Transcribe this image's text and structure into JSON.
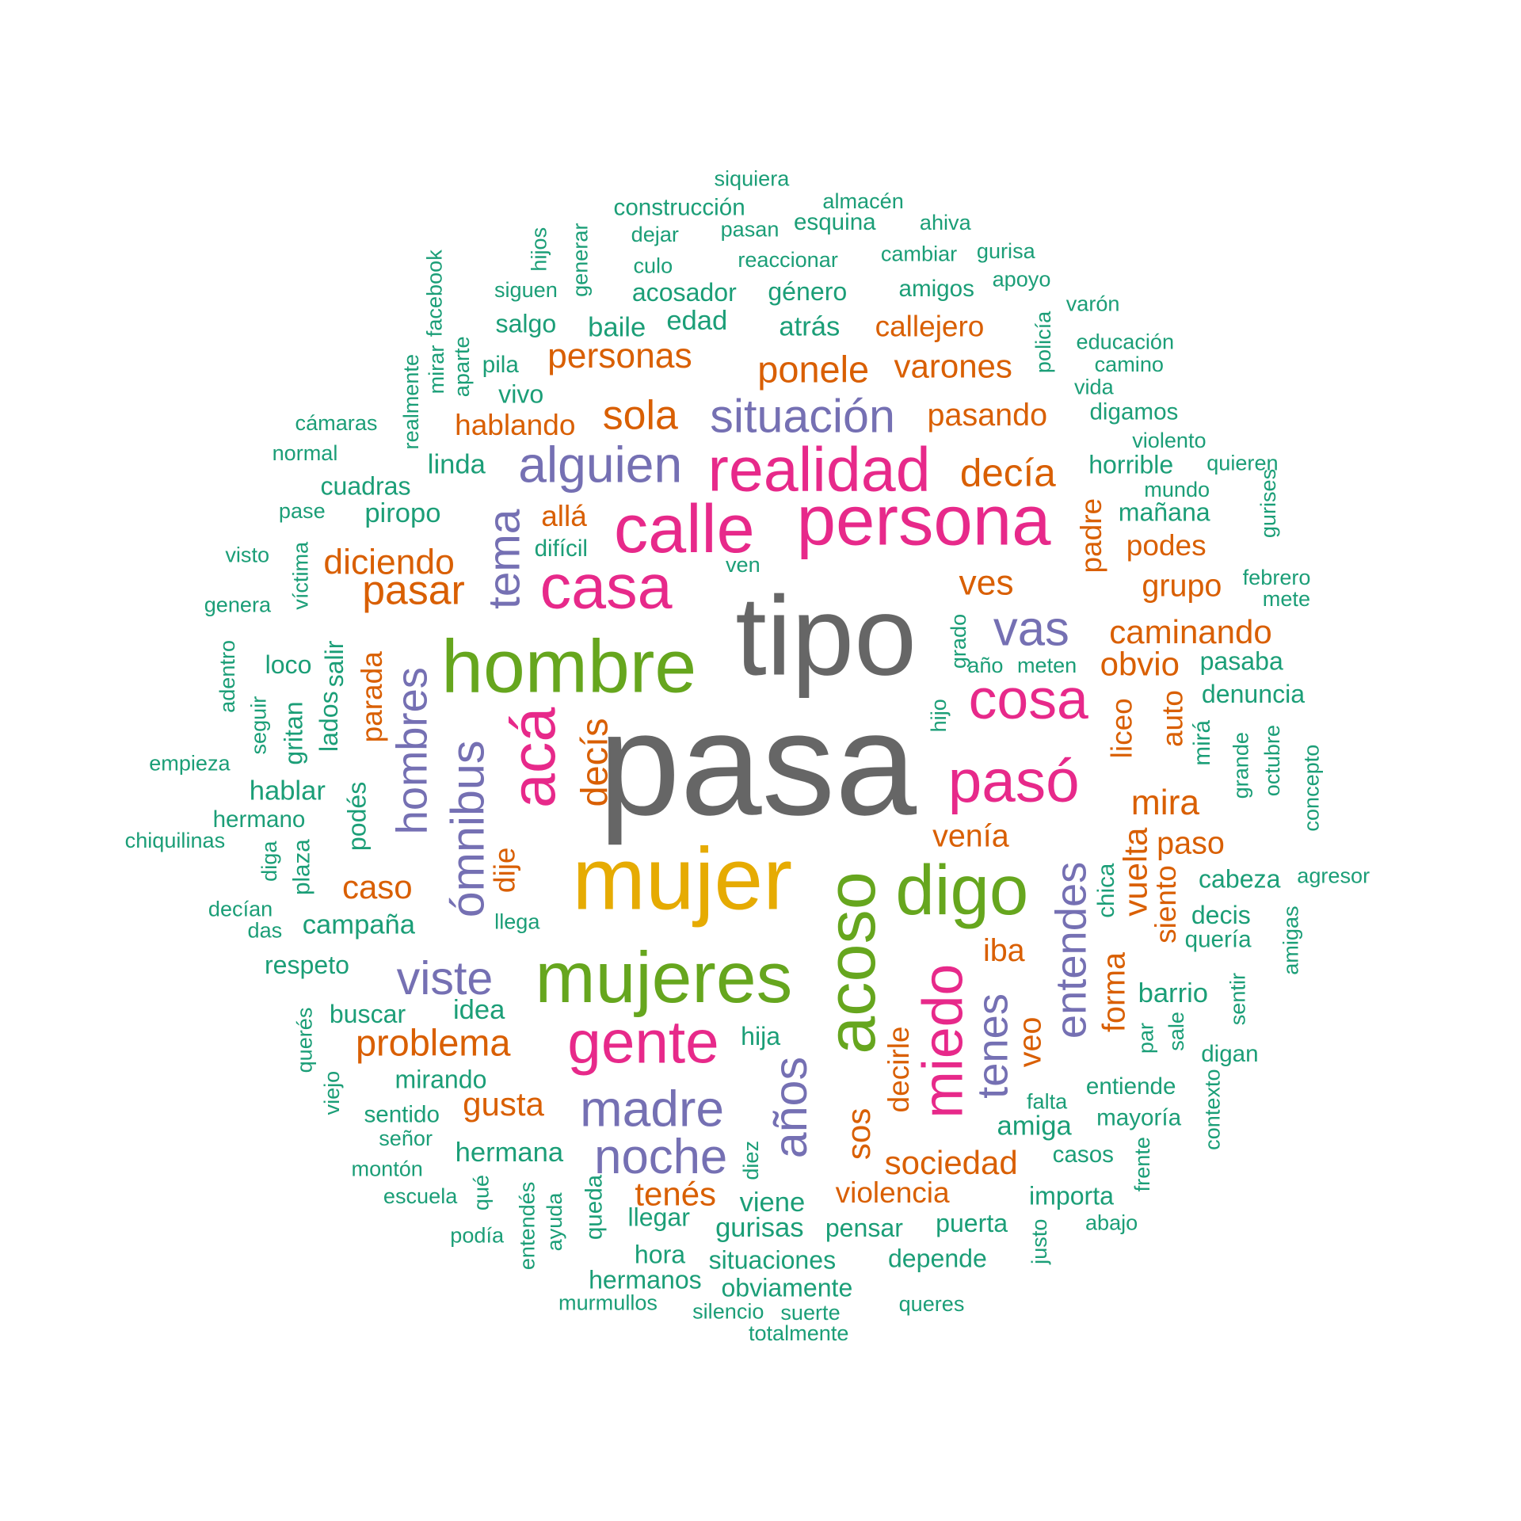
{
  "palette": {
    "gray": "#666666",
    "gold": "#E6AB02",
    "green": "#66A61E",
    "pink": "#E7298A",
    "purple": "#7570B3",
    "orange": "#D95F02",
    "teal": "#1B9E77"
  },
  "words": [
    {
      "text": "pasa",
      "color": "gray"
    },
    {
      "text": "tipo",
      "color": "gray"
    },
    {
      "text": "mujer",
      "color": "gold"
    },
    {
      "text": "hombre",
      "color": "green"
    },
    {
      "text": "mujeres",
      "color": "green"
    },
    {
      "text": "acoso",
      "color": "green"
    },
    {
      "text": "digo",
      "color": "green"
    },
    {
      "text": "persona",
      "color": "pink"
    },
    {
      "text": "calle",
      "color": "pink"
    },
    {
      "text": "realidad",
      "color": "pink"
    },
    {
      "text": "casa",
      "color": "pink"
    },
    {
      "text": "acá",
      "color": "pink"
    },
    {
      "text": "cosa",
      "color": "pink"
    },
    {
      "text": "pasó",
      "color": "pink"
    },
    {
      "text": "gente",
      "color": "pink"
    },
    {
      "text": "miedo",
      "color": "pink"
    },
    {
      "text": "alguien",
      "color": "purple"
    },
    {
      "text": "situación",
      "color": "purple"
    },
    {
      "text": "tema",
      "color": "purple"
    },
    {
      "text": "vas",
      "color": "purple"
    },
    {
      "text": "hombres",
      "color": "purple"
    },
    {
      "text": "ómnibus",
      "color": "purple"
    },
    {
      "text": "viste",
      "color": "purple"
    },
    {
      "text": "madre",
      "color": "purple"
    },
    {
      "text": "noche",
      "color": "purple"
    },
    {
      "text": "años",
      "color": "purple"
    },
    {
      "text": "entendes",
      "color": "purple"
    },
    {
      "text": "tenes",
      "color": "purple"
    },
    {
      "text": "personas",
      "color": "orange"
    },
    {
      "text": "ponele",
      "color": "orange"
    },
    {
      "text": "varones",
      "color": "orange"
    },
    {
      "text": "callejero",
      "color": "orange"
    },
    {
      "text": "sola",
      "color": "orange"
    },
    {
      "text": "hablando",
      "color": "orange"
    },
    {
      "text": "pasando",
      "color": "orange"
    },
    {
      "text": "decía",
      "color": "orange"
    },
    {
      "text": "allá",
      "color": "orange"
    },
    {
      "text": "diciendo",
      "color": "orange"
    },
    {
      "text": "pasar",
      "color": "orange"
    },
    {
      "text": "ves",
      "color": "orange"
    },
    {
      "text": "caminando",
      "color": "orange"
    },
    {
      "text": "obvio",
      "color": "orange"
    },
    {
      "text": "podes",
      "color": "orange"
    },
    {
      "text": "grupo",
      "color": "orange"
    },
    {
      "text": "padre",
      "color": "orange"
    },
    {
      "text": "parada",
      "color": "orange"
    },
    {
      "text": "decís",
      "color": "orange"
    },
    {
      "text": "auto",
      "color": "orange"
    },
    {
      "text": "liceo",
      "color": "orange"
    },
    {
      "text": "mira",
      "color": "orange"
    },
    {
      "text": "venía",
      "color": "orange"
    },
    {
      "text": "paso",
      "color": "orange"
    },
    {
      "text": "caso",
      "color": "orange"
    },
    {
      "text": "dije",
      "color": "orange"
    },
    {
      "text": "vuelta",
      "color": "orange"
    },
    {
      "text": "siento",
      "color": "orange"
    },
    {
      "text": "forma",
      "color": "orange"
    },
    {
      "text": "iba",
      "color": "orange"
    },
    {
      "text": "problema",
      "color": "orange"
    },
    {
      "text": "gusta",
      "color": "orange"
    },
    {
      "text": "veo",
      "color": "orange"
    },
    {
      "text": "decirle",
      "color": "orange"
    },
    {
      "text": "sos",
      "color": "orange"
    },
    {
      "text": "sociedad",
      "color": "orange"
    },
    {
      "text": "violencia",
      "color": "orange"
    },
    {
      "text": "tenés",
      "color": "orange"
    },
    {
      "text": "siquiera",
      "color": "teal"
    },
    {
      "text": "almacén",
      "color": "teal"
    },
    {
      "text": "construcción",
      "color": "teal"
    },
    {
      "text": "ahiva",
      "color": "teal"
    },
    {
      "text": "esquina",
      "color": "teal"
    },
    {
      "text": "dejar",
      "color": "teal"
    },
    {
      "text": "pasan",
      "color": "teal"
    },
    {
      "text": "cambiar",
      "color": "teal"
    },
    {
      "text": "gurisa",
      "color": "teal"
    },
    {
      "text": "hijos",
      "color": "teal"
    },
    {
      "text": "generar",
      "color": "teal"
    },
    {
      "text": "culo",
      "color": "teal"
    },
    {
      "text": "reaccionar",
      "color": "teal"
    },
    {
      "text": "facebook",
      "color": "teal"
    },
    {
      "text": "siguen",
      "color": "teal"
    },
    {
      "text": "acosador",
      "color": "teal"
    },
    {
      "text": "género",
      "color": "teal"
    },
    {
      "text": "amigos",
      "color": "teal"
    },
    {
      "text": "apoyo",
      "color": "teal"
    },
    {
      "text": "varón",
      "color": "teal"
    },
    {
      "text": "mirar",
      "color": "teal"
    },
    {
      "text": "salgo",
      "color": "teal"
    },
    {
      "text": "baile",
      "color": "teal"
    },
    {
      "text": "edad",
      "color": "teal"
    },
    {
      "text": "atrás",
      "color": "teal"
    },
    {
      "text": "policía",
      "color": "teal"
    },
    {
      "text": "educación",
      "color": "teal"
    },
    {
      "text": "aparte",
      "color": "teal"
    },
    {
      "text": "realmente",
      "color": "teal"
    },
    {
      "text": "pila",
      "color": "teal"
    },
    {
      "text": "camino",
      "color": "teal"
    },
    {
      "text": "vida",
      "color": "teal"
    },
    {
      "text": "vivo",
      "color": "teal"
    },
    {
      "text": "cámaras",
      "color": "teal"
    },
    {
      "text": "digamos",
      "color": "teal"
    },
    {
      "text": "violento",
      "color": "teal"
    },
    {
      "text": "normal",
      "color": "teal"
    },
    {
      "text": "linda",
      "color": "teal"
    },
    {
      "text": "horrible",
      "color": "teal"
    },
    {
      "text": "quieren",
      "color": "teal"
    },
    {
      "text": "cuadras",
      "color": "teal"
    },
    {
      "text": "mundo",
      "color": "teal"
    },
    {
      "text": "pase",
      "color": "teal"
    },
    {
      "text": "piropo",
      "color": "teal"
    },
    {
      "text": "mañana",
      "color": "teal"
    },
    {
      "text": "gurises",
      "color": "teal"
    },
    {
      "text": "visto",
      "color": "teal"
    },
    {
      "text": "difícil",
      "color": "teal"
    },
    {
      "text": "víctima",
      "color": "teal"
    },
    {
      "text": "ven",
      "color": "teal"
    },
    {
      "text": "febrero",
      "color": "teal"
    },
    {
      "text": "genera",
      "color": "teal"
    },
    {
      "text": "mete",
      "color": "teal"
    },
    {
      "text": "grado",
      "color": "teal"
    },
    {
      "text": "adentro",
      "color": "teal"
    },
    {
      "text": "loco",
      "color": "teal"
    },
    {
      "text": "salir",
      "color": "teal"
    },
    {
      "text": "año",
      "color": "teal"
    },
    {
      "text": "meten",
      "color": "teal"
    },
    {
      "text": "pasaba",
      "color": "teal"
    },
    {
      "text": "seguir",
      "color": "teal"
    },
    {
      "text": "gritan",
      "color": "teal"
    },
    {
      "text": "lados",
      "color": "teal"
    },
    {
      "text": "hijo",
      "color": "teal"
    },
    {
      "text": "denuncia",
      "color": "teal"
    },
    {
      "text": "empieza",
      "color": "teal"
    },
    {
      "text": "mirá",
      "color": "teal"
    },
    {
      "text": "grande",
      "color": "teal"
    },
    {
      "text": "octubre",
      "color": "teal"
    },
    {
      "text": "concepto",
      "color": "teal"
    },
    {
      "text": "hablar",
      "color": "teal"
    },
    {
      "text": "hermano",
      "color": "teal"
    },
    {
      "text": "podés",
      "color": "teal"
    },
    {
      "text": "chiquilinas",
      "color": "teal"
    },
    {
      "text": "diga",
      "color": "teal"
    },
    {
      "text": "plaza",
      "color": "teal"
    },
    {
      "text": "chica",
      "color": "teal"
    },
    {
      "text": "cabeza",
      "color": "teal"
    },
    {
      "text": "agresor",
      "color": "teal"
    },
    {
      "text": "decían",
      "color": "teal"
    },
    {
      "text": "das",
      "color": "teal"
    },
    {
      "text": "campaña",
      "color": "teal"
    },
    {
      "text": "llega",
      "color": "teal"
    },
    {
      "text": "decis",
      "color": "teal"
    },
    {
      "text": "quería",
      "color": "teal"
    },
    {
      "text": "amigas",
      "color": "teal"
    },
    {
      "text": "respeto",
      "color": "teal"
    },
    {
      "text": "barrio",
      "color": "teal"
    },
    {
      "text": "buscar",
      "color": "teal"
    },
    {
      "text": "idea",
      "color": "teal"
    },
    {
      "text": "sentir",
      "color": "teal"
    },
    {
      "text": "querés",
      "color": "teal"
    },
    {
      "text": "hija",
      "color": "teal"
    },
    {
      "text": "par",
      "color": "teal"
    },
    {
      "text": "sale",
      "color": "teal"
    },
    {
      "text": "digan",
      "color": "teal"
    },
    {
      "text": "viejo",
      "color": "teal"
    },
    {
      "text": "mirando",
      "color": "teal"
    },
    {
      "text": "entiende",
      "color": "teal"
    },
    {
      "text": "contexto",
      "color": "teal"
    },
    {
      "text": "sentido",
      "color": "teal"
    },
    {
      "text": "falta",
      "color": "teal"
    },
    {
      "text": "mayoría",
      "color": "teal"
    },
    {
      "text": "amiga",
      "color": "teal"
    },
    {
      "text": "señor",
      "color": "teal"
    },
    {
      "text": "hermana",
      "color": "teal"
    },
    {
      "text": "casos",
      "color": "teal"
    },
    {
      "text": "montón",
      "color": "teal"
    },
    {
      "text": "diez",
      "color": "teal"
    },
    {
      "text": "frente",
      "color": "teal"
    },
    {
      "text": "escuela",
      "color": "teal"
    },
    {
      "text": "qué",
      "color": "teal"
    },
    {
      "text": "entendés",
      "color": "teal"
    },
    {
      "text": "ayuda",
      "color": "teal"
    },
    {
      "text": "queda",
      "color": "teal"
    },
    {
      "text": "viene",
      "color": "teal"
    },
    {
      "text": "importa",
      "color": "teal"
    },
    {
      "text": "podía",
      "color": "teal"
    },
    {
      "text": "llegar",
      "color": "teal"
    },
    {
      "text": "gurisas",
      "color": "teal"
    },
    {
      "text": "pensar",
      "color": "teal"
    },
    {
      "text": "puerta",
      "color": "teal"
    },
    {
      "text": "justo",
      "color": "teal"
    },
    {
      "text": "abajo",
      "color": "teal"
    },
    {
      "text": "hora",
      "color": "teal"
    },
    {
      "text": "situaciones",
      "color": "teal"
    },
    {
      "text": "depende",
      "color": "teal"
    },
    {
      "text": "hermanos",
      "color": "teal"
    },
    {
      "text": "obviamente",
      "color": "teal"
    },
    {
      "text": "murmullos",
      "color": "teal"
    },
    {
      "text": "silencio",
      "color": "teal"
    },
    {
      "text": "suerte",
      "color": "teal"
    },
    {
      "text": "queres",
      "color": "teal"
    },
    {
      "text": "totalmente",
      "color": "teal"
    }
  ]
}
